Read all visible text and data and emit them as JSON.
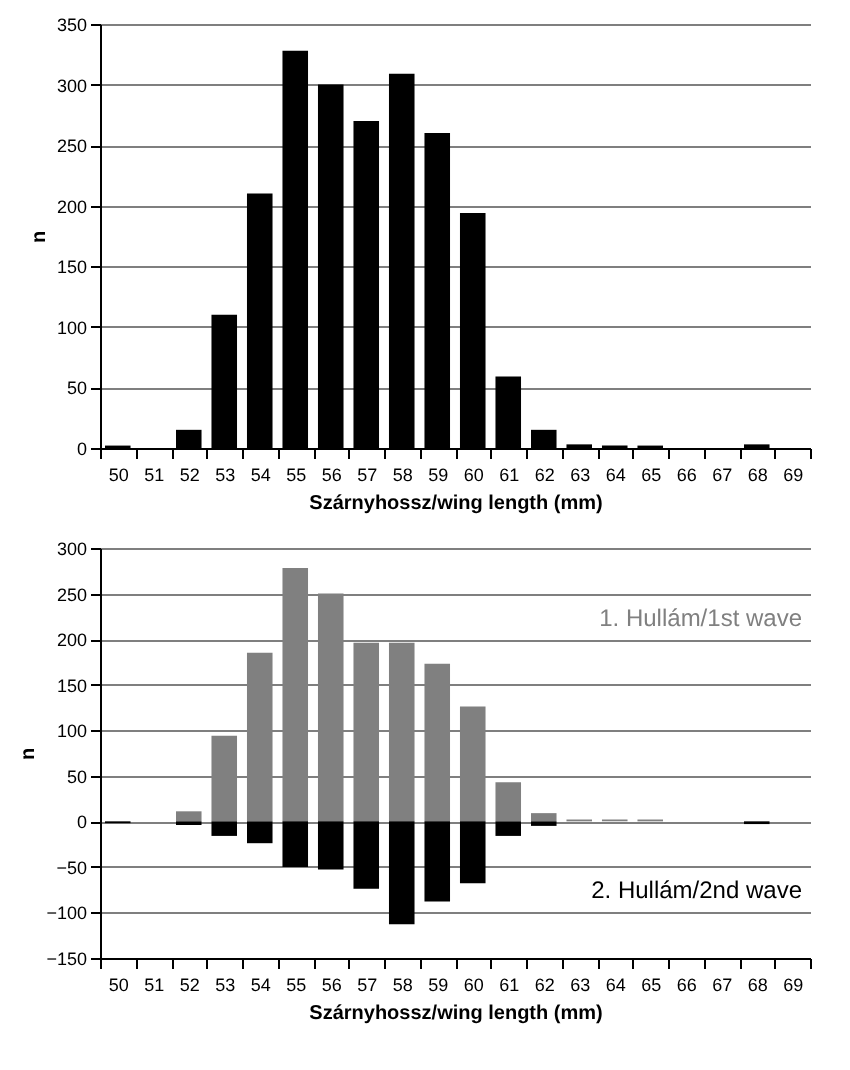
{
  "chart_data": [
    {
      "type": "bar",
      "xlabel": "Szárnyhossz/wing length (mm)",
      "ylabel": "n",
      "categories": [
        "50",
        "51",
        "52",
        "53",
        "54",
        "55",
        "56",
        "57",
        "58",
        "59",
        "60",
        "61",
        "62",
        "63",
        "64",
        "65",
        "66",
        "67",
        "68",
        "69"
      ],
      "series": [
        {
          "color": "#000000",
          "values": [
            2,
            0,
            15,
            110,
            210,
            328,
            300,
            270,
            309,
            260,
            194,
            59,
            15,
            3,
            2,
            2,
            0,
            0,
            3,
            null
          ]
        }
      ],
      "ylim": [
        0,
        350
      ],
      "yticks": [
        0,
        50,
        100,
        150,
        200,
        250,
        300,
        350
      ],
      "grid": "y"
    },
    {
      "type": "bar",
      "xlabel": "Szárnyhossz/wing length (mm)",
      "ylabel": "n",
      "categories": [
        "50",
        "51",
        "52",
        "53",
        "54",
        "55",
        "56",
        "57",
        "58",
        "59",
        "60",
        "61",
        "62",
        "63",
        "64",
        "65",
        "66",
        "67",
        "68",
        "69"
      ],
      "series": [
        {
          "name": "1. Hullám/1st wave",
          "color": "#808080",
          "values": [
            null,
            null,
            11,
            94,
            185,
            278,
            250,
            196,
            196,
            173,
            126,
            43,
            9,
            2,
            2,
            2,
            null,
            null,
            null,
            null
          ]
        },
        {
          "name": "2. Hullám/2nd wave",
          "color": "#000000",
          "values": [
            -2,
            null,
            -4,
            -16,
            -24,
            -50,
            -53,
            -74,
            -113,
            -88,
            -68,
            -16,
            -5,
            null,
            null,
            null,
            null,
            null,
            -3,
            null
          ]
        }
      ],
      "stacked": true,
      "ylim": [
        -150,
        300
      ],
      "yticks": [
        -150,
        -100,
        -50,
        0,
        50,
        100,
        150,
        200,
        250,
        300
      ],
      "grid": "y"
    }
  ]
}
